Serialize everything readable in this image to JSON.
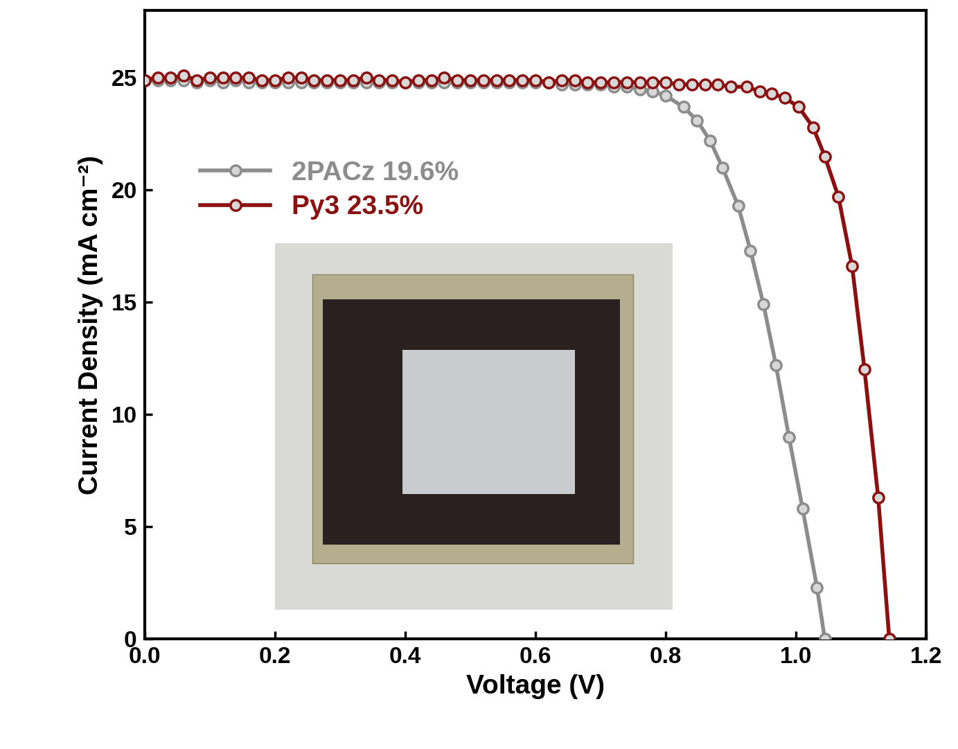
{
  "chart_data": {
    "type": "line",
    "x_label": "Voltage (V)",
    "y_label": "Current Density (mA cm⁻²)",
    "xlim": [
      0,
      1.2
    ],
    "ylim": [
      0,
      28
    ],
    "xticks": [
      0.0,
      0.2,
      0.4,
      0.6,
      0.8,
      1.0,
      1.2
    ],
    "yticks": [
      0,
      5,
      10,
      15,
      20,
      25
    ],
    "legend": "upper left",
    "series": [
      {
        "name": "2PACz 19.6%",
        "color": "#8c8c8c",
        "marker": "o",
        "line_style": "solid",
        "x": [
          0.0,
          0.02,
          0.04,
          0.06,
          0.08,
          0.1,
          0.12,
          0.14,
          0.16,
          0.18,
          0.2,
          0.22,
          0.24,
          0.26,
          0.28,
          0.3,
          0.32,
          0.34,
          0.36,
          0.38,
          0.4,
          0.42,
          0.44,
          0.46,
          0.48,
          0.5,
          0.52,
          0.54,
          0.56,
          0.58,
          0.6,
          0.62,
          0.64,
          0.66,
          0.68,
          0.7,
          0.72,
          0.74,
          0.76,
          0.78,
          0.8,
          0.827,
          0.848,
          0.868,
          0.887,
          0.911,
          0.93,
          0.95,
          0.969,
          0.989,
          1.01,
          1.032,
          1.044
        ],
        "values": [
          24.9,
          24.9,
          24.9,
          24.9,
          24.8,
          24.9,
          24.8,
          24.9,
          24.8,
          24.8,
          24.8,
          24.8,
          24.8,
          24.8,
          24.8,
          24.8,
          24.8,
          24.8,
          24.8,
          24.8,
          24.8,
          24.8,
          24.8,
          24.8,
          24.8,
          24.8,
          24.8,
          24.8,
          24.8,
          24.8,
          24.8,
          24.8,
          24.7,
          24.7,
          24.7,
          24.7,
          24.6,
          24.6,
          24.5,
          24.4,
          24.2,
          23.7,
          23.1,
          22.2,
          21.0,
          19.3,
          17.3,
          14.9,
          12.2,
          9.0,
          5.8,
          2.3,
          0
        ]
      },
      {
        "name": "Py3 23.5%",
        "color": "#8b1010",
        "marker": "o",
        "line_style": "solid",
        "x": [
          0.0,
          0.02,
          0.04,
          0.06,
          0.08,
          0.1,
          0.12,
          0.14,
          0.16,
          0.18,
          0.2,
          0.22,
          0.24,
          0.26,
          0.28,
          0.3,
          0.32,
          0.34,
          0.36,
          0.38,
          0.4,
          0.42,
          0.44,
          0.46,
          0.48,
          0.5,
          0.52,
          0.54,
          0.56,
          0.58,
          0.6,
          0.62,
          0.64,
          0.66,
          0.68,
          0.7,
          0.72,
          0.74,
          0.76,
          0.78,
          0.8,
          0.82,
          0.84,
          0.86,
          0.88,
          0.9,
          0.924,
          0.944,
          0.963,
          0.983,
          1.004,
          1.026,
          1.044,
          1.065,
          1.086,
          1.105,
          1.126,
          1.143
        ],
        "values": [
          24.9,
          25.0,
          25.0,
          25.1,
          24.9,
          25.0,
          25.0,
          25.0,
          25.0,
          24.9,
          24.9,
          25.0,
          25.0,
          24.9,
          24.9,
          24.9,
          24.9,
          25.0,
          24.9,
          24.9,
          24.8,
          24.9,
          24.9,
          25.0,
          24.9,
          24.9,
          24.9,
          24.9,
          24.9,
          24.9,
          24.9,
          24.8,
          24.9,
          24.9,
          24.8,
          24.8,
          24.8,
          24.8,
          24.8,
          24.8,
          24.8,
          24.7,
          24.7,
          24.7,
          24.7,
          24.6,
          24.6,
          24.4,
          24.3,
          24.1,
          23.7,
          22.8,
          21.5,
          19.7,
          16.6,
          12.0,
          6.3,
          0
        ]
      }
    ]
  }
}
